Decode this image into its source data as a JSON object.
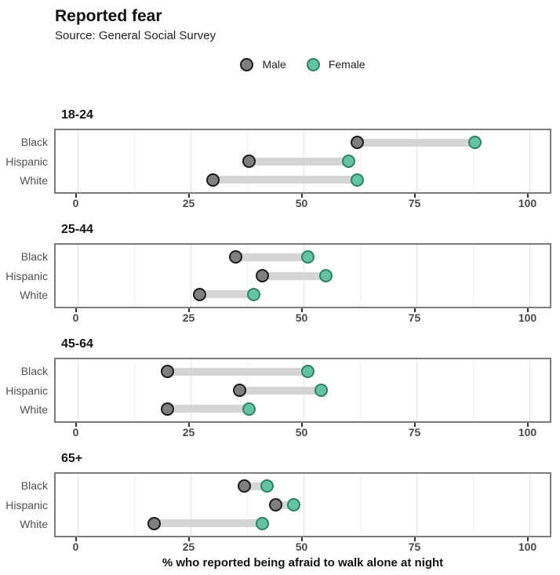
{
  "chart_data": {
    "type": "dumbbell",
    "title": "Reported fear",
    "subtitle": "Source: General Social Survey",
    "xlabel": "% who reported being afraid to walk alone at night",
    "xlim": [
      0,
      100
    ],
    "x_ticks": [
      0,
      25,
      50,
      75,
      100
    ],
    "x_minor_ticks": [
      12.5,
      37.5,
      62.5,
      87.5
    ],
    "grid": "vertical-on",
    "legend_position": "top-center",
    "legend": [
      {
        "label": "Male",
        "fill": "#7f7f7f",
        "stroke": "#1c1c1c"
      },
      {
        "label": "Female",
        "fill": "#66c2a5",
        "stroke": "#2f8066"
      }
    ],
    "categories": [
      "Black",
      "Hispanic",
      "White"
    ],
    "panels": [
      {
        "age_group": "18-24",
        "rows": [
          {
            "category": "Black",
            "male": 62,
            "female": 88
          },
          {
            "category": "Hispanic",
            "male": 38,
            "female": 60
          },
          {
            "category": "White",
            "male": 30,
            "female": 62
          }
        ]
      },
      {
        "age_group": "25-44",
        "rows": [
          {
            "category": "Black",
            "male": 35,
            "female": 51
          },
          {
            "category": "Hispanic",
            "male": 41,
            "female": 55
          },
          {
            "category": "White",
            "male": 27,
            "female": 39
          }
        ]
      },
      {
        "age_group": "45-64",
        "rows": [
          {
            "category": "Black",
            "male": 20,
            "female": 51
          },
          {
            "category": "Hispanic",
            "male": 36,
            "female": 54
          },
          {
            "category": "White",
            "male": 20,
            "female": 38
          }
        ]
      },
      {
        "age_group": "65+",
        "rows": [
          {
            "category": "Black",
            "male": 37,
            "female": 42
          },
          {
            "category": "Hispanic",
            "male": 44,
            "female": 48
          },
          {
            "category": "White",
            "male": 17,
            "female": 41
          }
        ]
      }
    ],
    "colors": {
      "male_fill": "#7f7f7f",
      "male_stroke": "#1c1c1c",
      "female_fill": "#66c2a5",
      "female_stroke": "#2f8066",
      "connector": "#d5d5d5"
    }
  }
}
